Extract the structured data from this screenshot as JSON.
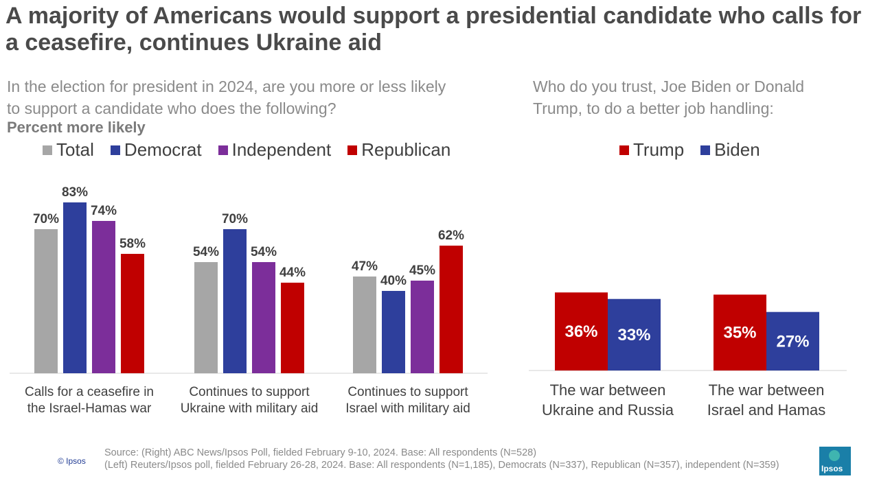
{
  "title": "A majority of Americans would support a presidential candidate who calls for a ceasefire, continues Ukraine aid",
  "left_question": "In the election for president in 2024, are you more or less likely to support a candidate who does the following?",
  "left_subtitle": "Percent more likely",
  "right_question": "Who do you trust, Joe Biden or Donald Trump, to do a better job handling:",
  "colors": {
    "total": "#a6a6a6",
    "democrat": "#2e3f9c",
    "independent": "#7c2e9a",
    "republican": "#c00000",
    "trump": "#c00000",
    "biden": "#2e3f9c"
  },
  "chart_data": [
    {
      "type": "bar",
      "title": "",
      "categories": [
        "Calls for a ceasefire in the Israel-Hamas war",
        "Continues to support Ukraine with military aid",
        "Continues to support Israel with military aid"
      ],
      "category_lines": [
        [
          "Calls for a ceasefire in",
          "the Israel-Hamas war"
        ],
        [
          "Continues to support",
          "Ukraine with military aid"
        ],
        [
          "Continues to support",
          "Israel with military aid"
        ]
      ],
      "series": [
        {
          "name": "Total",
          "values": [
            70,
            54,
            47
          ],
          "labels": [
            "70%",
            "54%",
            "47%"
          ]
        },
        {
          "name": "Democrat",
          "values": [
            83,
            70,
            40
          ],
          "labels": [
            "83%",
            "70%",
            "40%"
          ]
        },
        {
          "name": "Independent",
          "values": [
            74,
            54,
            45
          ],
          "labels": [
            "74%",
            "54%",
            "45%"
          ]
        },
        {
          "name": "Republican",
          "values": [
            58,
            44,
            62
          ],
          "labels": [
            "58%",
            "44%",
            "62%"
          ]
        }
      ],
      "unit": "%",
      "ylim": [
        0,
        100
      ],
      "grid": false,
      "legend": "top"
    },
    {
      "type": "bar",
      "title": "",
      "categories": [
        "The war between Ukraine and Russia",
        "The war between Israel and Hamas"
      ],
      "category_lines": [
        [
          "The war between",
          "Ukraine and Russia"
        ],
        [
          "The war between",
          "Israel and Hamas"
        ]
      ],
      "series": [
        {
          "name": "Trump",
          "values": [
            36,
            35
          ],
          "labels": [
            "36%",
            "35%"
          ]
        },
        {
          "name": "Biden",
          "values": [
            33,
            27
          ],
          "labels": [
            "33%",
            "27%"
          ]
        }
      ],
      "unit": "%",
      "ylim": [
        0,
        100
      ],
      "grid": false,
      "legend": "top"
    }
  ],
  "source": {
    "line1": "Source: (Right) ABC News/Ipsos Poll, fielded February 9-10, 2024. Base: All respondents (N=528)",
    "line2": "(Left) Reuters/Ipsos poll, fielded February 26-28, 2024. Base: All respondents (N=1,185), Democrats (N=337), Republican (N=357), independent (N=359)"
  },
  "copyright": "© Ipsos",
  "logo_text": "Ipsos"
}
